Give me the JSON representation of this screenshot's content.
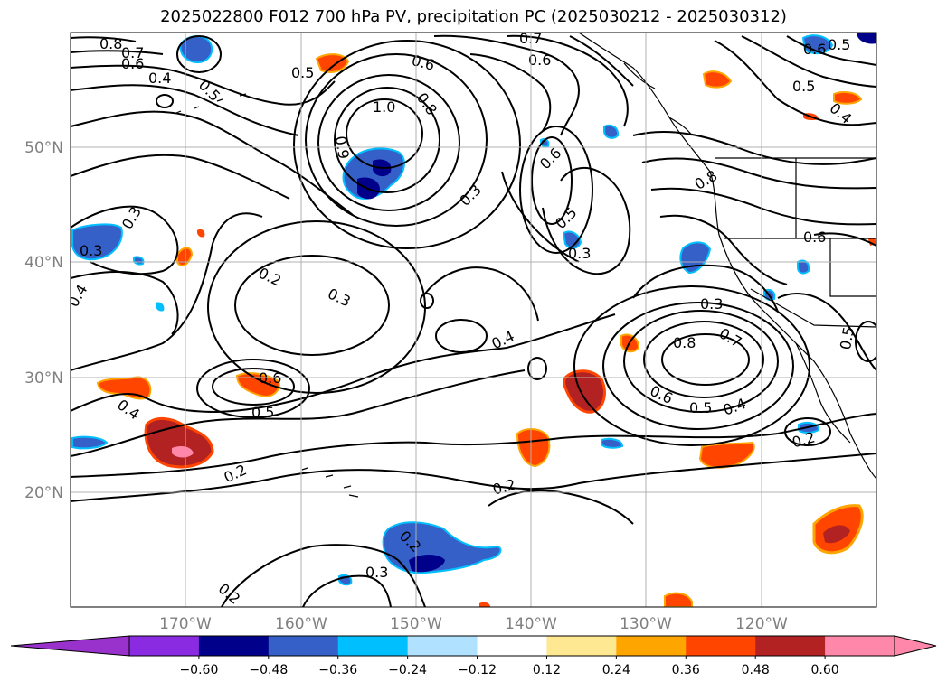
{
  "title": "2025022800 F012 700 hPa PV, precipitation PC (2025030212 - 2025030312)",
  "map": {
    "lon_labels": [
      "170°W",
      "160°W",
      "150°W",
      "140°W",
      "130°W",
      "120°W"
    ],
    "lat_labels": [
      "50°N",
      "40°N",
      "30°N",
      "20°N"
    ],
    "contour_labels": [
      {
        "text": "0.8"
      },
      {
        "text": "0.7"
      },
      {
        "text": "0.6"
      },
      {
        "text": "0.4"
      },
      {
        "text": "0.5"
      },
      {
        "text": "0.5"
      },
      {
        "text": "0.6"
      },
      {
        "text": "0.8"
      },
      {
        "text": "1.0"
      },
      {
        "text": "0.9"
      },
      {
        "text": "0.6"
      },
      {
        "text": "0.7"
      },
      {
        "text": "0.6"
      },
      {
        "text": "0.5"
      },
      {
        "text": "0.4"
      },
      {
        "text": "0.6"
      },
      {
        "text": "0.3"
      },
      {
        "text": "0.5"
      },
      {
        "text": "0.3"
      },
      {
        "text": "0.8"
      },
      {
        "text": "0.6"
      },
      {
        "text": "0.2"
      },
      {
        "text": "0.3"
      },
      {
        "text": "0.4"
      },
      {
        "text": "0.6"
      },
      {
        "text": "0.5"
      },
      {
        "text": "0.8"
      },
      {
        "text": "0.7"
      },
      {
        "text": "0.6"
      },
      {
        "text": "0.5"
      },
      {
        "text": "0.4"
      },
      {
        "text": "0.3"
      },
      {
        "text": "0.5"
      },
      {
        "text": "0.3"
      },
      {
        "text": "0.4"
      },
      {
        "text": "0.3"
      },
      {
        "text": "0.4"
      },
      {
        "text": "0.2"
      },
      {
        "text": "0.2"
      },
      {
        "text": "0.2"
      },
      {
        "text": "0.2"
      },
      {
        "text": "0.3"
      },
      {
        "text": "0.2"
      },
      {
        "text": "0.5"
      }
    ]
  },
  "colorbar": {
    "colors": [
      "#9932cc",
      "#8a2be2",
      "#00008b",
      "#3560c8",
      "#00bfff",
      "#b0e2ff",
      "#ffffff",
      "#fee891",
      "#ffa500",
      "#ff4500",
      "#b22222",
      "#ff88aa",
      "#ff88aa"
    ],
    "ticks": [
      "−0.60",
      "−0.48",
      "−0.36",
      "−0.24",
      "−0.12",
      "0.12",
      "0.24",
      "0.36",
      "0.48",
      "0.60"
    ]
  }
}
